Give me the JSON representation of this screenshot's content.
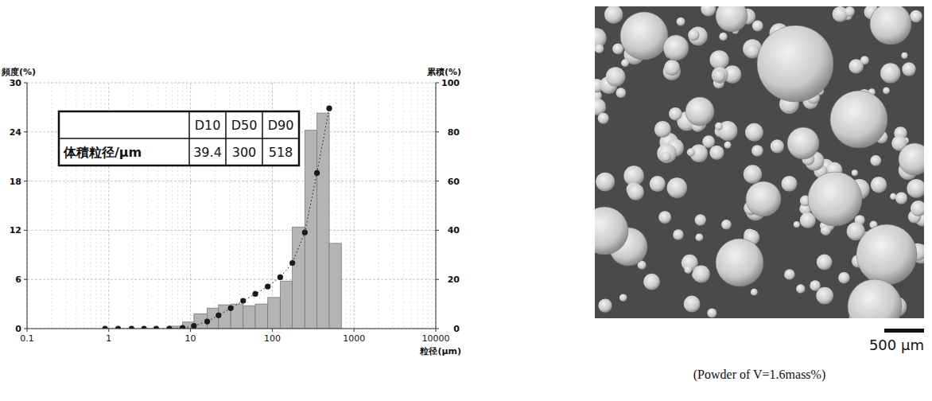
{
  "chart_data": {
    "type": "histogram",
    "bins": [
      5.5,
      8,
      11,
      16,
      22,
      31,
      44,
      62,
      88,
      125,
      176,
      250,
      352,
      497,
      700
    ],
    "values": [
      0.3,
      0.8,
      1.8,
      2.5,
      2.9,
      3.0,
      2.8,
      3.0,
      3.8,
      5.8,
      12.4,
      24.2,
      26.3,
      10.4
    ],
    "color": "#b4b4b4",
    "xlim": [
      0.1,
      10000
    ],
    "xticks": [
      0.1,
      1,
      10,
      100,
      1000,
      10000
    ],
    "ylim": [
      0,
      30
    ],
    "yticks": [
      0,
      6,
      12,
      18,
      24,
      30
    ],
    "y2lim": [
      0,
      100
    ],
    "y2ticks": [
      0,
      20,
      40,
      60,
      80,
      100
    ],
    "log": "x",
    "grid": true,
    "y_label": "頻度(%)",
    "y2_label": "累積(%)",
    "x_label": "粒径(μm)",
    "series": [
      {
        "type": "scatter",
        "axis": "y2",
        "color": "#1a1a1a",
        "marker": "circle",
        "line_style": "dotted",
        "x": [
          0.9,
          1.3,
          1.9,
          2.7,
          3.8,
          5.5,
          8,
          11,
          16,
          22,
          31,
          44,
          62,
          88,
          125,
          176,
          250,
          352,
          497
        ],
        "values": [
          0,
          0,
          0,
          0,
          0,
          0,
          0.3,
          1.1,
          2.9,
          5.4,
          8.3,
          11.3,
          14.1,
          17.1,
          20.9,
          26.7,
          39.1,
          63.3,
          89.6
        ]
      }
    ]
  },
  "table": {
    "columns": [
      "D10",
      "D50",
      "D90"
    ],
    "rows": [
      {
        "label": "体積粒径/μm",
        "values": [
          39.4,
          300,
          518
        ]
      }
    ]
  },
  "image": {
    "scale_bar": "500 μm",
    "caption": "(Powder of V=1.6mass%)"
  }
}
